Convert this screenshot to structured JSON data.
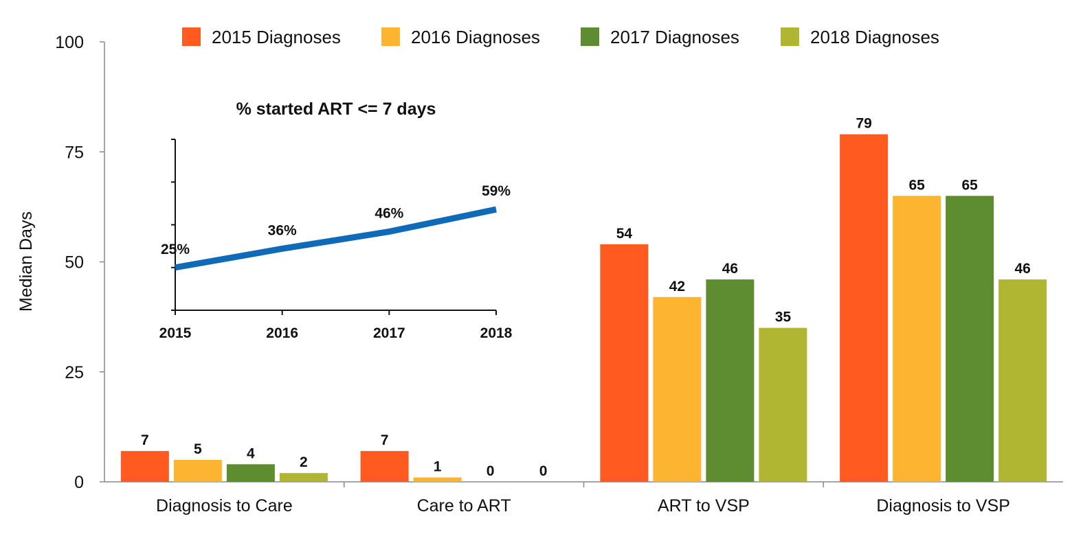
{
  "chart_data": [
    {
      "type": "bar",
      "ylabel": "Median Days",
      "ylim": [
        0,
        100
      ],
      "yticks": [
        "0",
        "25",
        "50",
        "75",
        "100"
      ],
      "categories": [
        "Diagnosis to Care",
        "Care to ART",
        "ART to VSP",
        "Diagnosis to VSP"
      ],
      "legend_position": "top",
      "series": [
        {
          "name": "2015 Diagnoses",
          "color": "#ff5a1f",
          "values": [
            7,
            7,
            54,
            79
          ],
          "labels": [
            "7",
            "7",
            "54",
            "79"
          ]
        },
        {
          "name": "2016 Diagnoses",
          "color": "#fdb431",
          "values": [
            5,
            1,
            42,
            65
          ],
          "labels": [
            "5",
            "1",
            "42",
            "65"
          ]
        },
        {
          "name": "2017 Diagnoses",
          "color": "#5e8d31",
          "values": [
            4,
            0,
            46,
            65
          ],
          "labels": [
            "4",
            "0",
            "46",
            "65"
          ]
        },
        {
          "name": "2018 Diagnoses",
          "color": "#b0b532",
          "values": [
            2,
            0,
            35,
            46
          ],
          "labels": [
            "2",
            "0",
            "35",
            "46"
          ]
        }
      ]
    },
    {
      "type": "line",
      "title": "% started ART <= 7 days",
      "x": [
        "2015",
        "2016",
        "2017",
        "2018"
      ],
      "ylim": [
        0,
        100
      ],
      "color": "#0f6bb8",
      "series": [
        {
          "values": [
            25,
            36,
            46,
            59
          ],
          "labels": [
            "25%",
            "36%",
            "46%",
            "59%"
          ]
        }
      ]
    }
  ]
}
